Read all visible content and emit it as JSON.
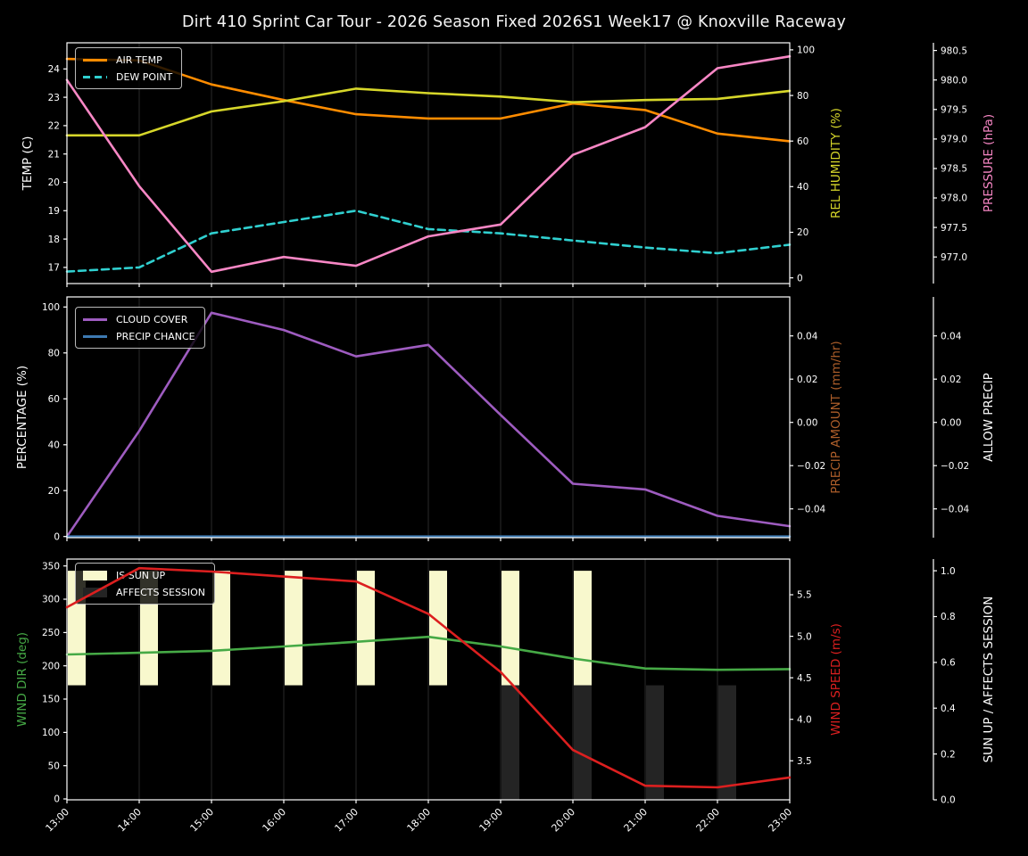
{
  "title": "Dirt 410 Sprint Car Tour - 2026 Season Fixed 2026S1 Week17 @ Knoxville Raceway",
  "style": {
    "background": "#000000",
    "text_color": "#ffffff",
    "grid_color": "#2a2a2a",
    "spine_color": "#ffffff",
    "legend_border": "#b9b9b9"
  },
  "x_hours": [
    "13:00",
    "14:00",
    "15:00",
    "16:00",
    "17:00",
    "18:00",
    "19:00",
    "20:00",
    "21:00",
    "22:00",
    "23:00"
  ],
  "chart_data": [
    {
      "panel": "temperature",
      "type": "line",
      "legend_position": "upper left",
      "axes": {
        "left": {
          "label": "TEMP (C)",
          "color": "#ffffff",
          "ticks": [
            17,
            18,
            19,
            20,
            21,
            22,
            23,
            24
          ],
          "range": [
            16.43,
            24.92
          ]
        },
        "right1": {
          "label": "REL HUMIDITY (%)",
          "color": "#d7d72a",
          "ticks": [
            0,
            20,
            40,
            60,
            80,
            100
          ],
          "range": [
            -2.5,
            103.1
          ]
        },
        "right2": {
          "label": "PRESSURE (hPa)",
          "color": "#f887c5",
          "ticks": [
            977.0,
            977.5,
            978.0,
            978.5,
            979.0,
            979.5,
            980.0,
            980.5
          ],
          "tick_labels": [
            "977.0",
            "977.5",
            "978.0",
            "978.5",
            "979.0",
            "979.5",
            "980.0",
            "980.5"
          ],
          "range": [
            976.55,
            980.63
          ]
        }
      },
      "series": [
        {
          "name": "AIR TEMP",
          "axis": "left",
          "color": "#ff8c00",
          "values": [
            24.35,
            24.3,
            23.45,
            22.9,
            22.4,
            22.25,
            22.25,
            22.78,
            22.55,
            21.72,
            21.45
          ]
        },
        {
          "name": "DEW POINT",
          "axis": "left",
          "color": "#30d0d0",
          "dash": true,
          "values": [
            16.85,
            17.0,
            18.2,
            18.6,
            19.0,
            18.35,
            18.2,
            17.95,
            17.7,
            17.5,
            17.8
          ]
        },
        {
          "name": "REL HUMIDITY",
          "axis": "right1",
          "color": "#d7d72a",
          "values": [
            62.5,
            62.5,
            73,
            77.5,
            83,
            81,
            79.5,
            77,
            78,
            78.5,
            82
          ]
        },
        {
          "name": "PRESSURE",
          "axis": "right2",
          "color": "#f887c5",
          "values": [
            980.0,
            978.2,
            976.75,
            977.0,
            976.85,
            977.35,
            977.55,
            978.73,
            979.2,
            980.2,
            980.4
          ]
        }
      ]
    },
    {
      "panel": "precipitation",
      "type": "line",
      "legend_position": "upper left",
      "axes": {
        "left": {
          "label": "PERCENTAGE (%)",
          "color": "#ffffff",
          "ticks": [
            0,
            20,
            40,
            60,
            80,
            100
          ],
          "range": [
            -0.5,
            104.4
          ]
        },
        "right1": {
          "label": "PRECIP AMOUNT (mm/hr)",
          "color": "#ad5e2a",
          "ticks": [
            0.04,
            0.02,
            0,
            -0.02,
            -0.04
          ],
          "tick_labels": [
            "0.04",
            "0.02",
            "0.00",
            "−0.02",
            "−0.04"
          ],
          "range": [
            -0.0533,
            0.058
          ]
        },
        "right2": {
          "label": "ALLOW PRECIP",
          "color": "#ffffff",
          "ticks": [
            0.04,
            0.02,
            0,
            -0.02,
            -0.04
          ],
          "tick_labels": [
            "0.04",
            "0.02",
            "0.00",
            "−0.02",
            "−0.04"
          ],
          "range": [
            -0.0533,
            0.058
          ]
        }
      },
      "series": [
        {
          "name": "CLOUD COVER",
          "axis": "left",
          "color": "#9e5cc0",
          "values": [
            0,
            46,
            97.5,
            90,
            78.5,
            83.5,
            53,
            23,
            20.5,
            9,
            4.5
          ]
        },
        {
          "name": "PRECIP CHANCE",
          "axis": "left",
          "color": "#3d7ab2",
          "values": [
            0,
            0,
            0,
            0,
            0,
            0,
            0,
            0,
            0,
            0,
            0
          ]
        }
      ]
    },
    {
      "panel": "wind",
      "type": "line+bar",
      "legend_position": "upper left",
      "axes": {
        "left": {
          "label": "WIND DIR (deg)",
          "color": "#46aa46",
          "ticks": [
            0,
            50,
            100,
            150,
            200,
            250,
            300,
            350
          ],
          "range": [
            -1.3,
            360.3
          ]
        },
        "right1": {
          "label": "WIND SPEED (m/s)",
          "color": "#dc1f1f",
          "ticks": [
            3.5,
            4.0,
            4.5,
            5.0,
            5.5
          ],
          "tick_labels": [
            "3.5",
            "4.0",
            "4.5",
            "5.0",
            "5.5"
          ],
          "range": [
            3.03,
            5.93
          ]
        },
        "right2": {
          "label": "SUN UP / AFFECTS SESSION",
          "color": "#ffffff",
          "ticks": [
            0,
            0.2,
            0.4,
            0.6,
            0.8,
            1.0
          ],
          "tick_labels": [
            "0.0",
            "0.2",
            "0.4",
            "0.6",
            "0.8",
            "1.0"
          ],
          "range": [
            0,
            1.051
          ]
        }
      },
      "series": [
        {
          "name": "WIND DIR",
          "axis": "left",
          "color": "#46aa46",
          "values": [
            217,
            219.5,
            222.5,
            229,
            236,
            243.5,
            229,
            211,
            196,
            194,
            195
          ]
        },
        {
          "name": "WIND SPEED",
          "axis": "right1",
          "color": "#dc1f1f",
          "overlay": true,
          "values": [
            5.35,
            5.82,
            5.78,
            5.72,
            5.66,
            5.27,
            4.57,
            3.63,
            3.2,
            3.18,
            3.3
          ]
        },
        {
          "name": "IS SUN UP",
          "axis": "right2",
          "type": "bar",
          "color": "#f8f8cd",
          "bar_bottom": 0.5,
          "bar_top": 1.0,
          "values": [
            1,
            1,
            1,
            1,
            1,
            1,
            1,
            1,
            0,
            0,
            0
          ]
        },
        {
          "name": "AFFECTS SESSION",
          "axis": "right2",
          "type": "bar",
          "color": "#242424",
          "bar_bottom": 0.0,
          "bar_top": 0.5,
          "values": [
            0,
            0,
            0,
            0,
            0,
            0,
            1,
            1,
            1,
            1,
            0
          ]
        }
      ]
    }
  ]
}
